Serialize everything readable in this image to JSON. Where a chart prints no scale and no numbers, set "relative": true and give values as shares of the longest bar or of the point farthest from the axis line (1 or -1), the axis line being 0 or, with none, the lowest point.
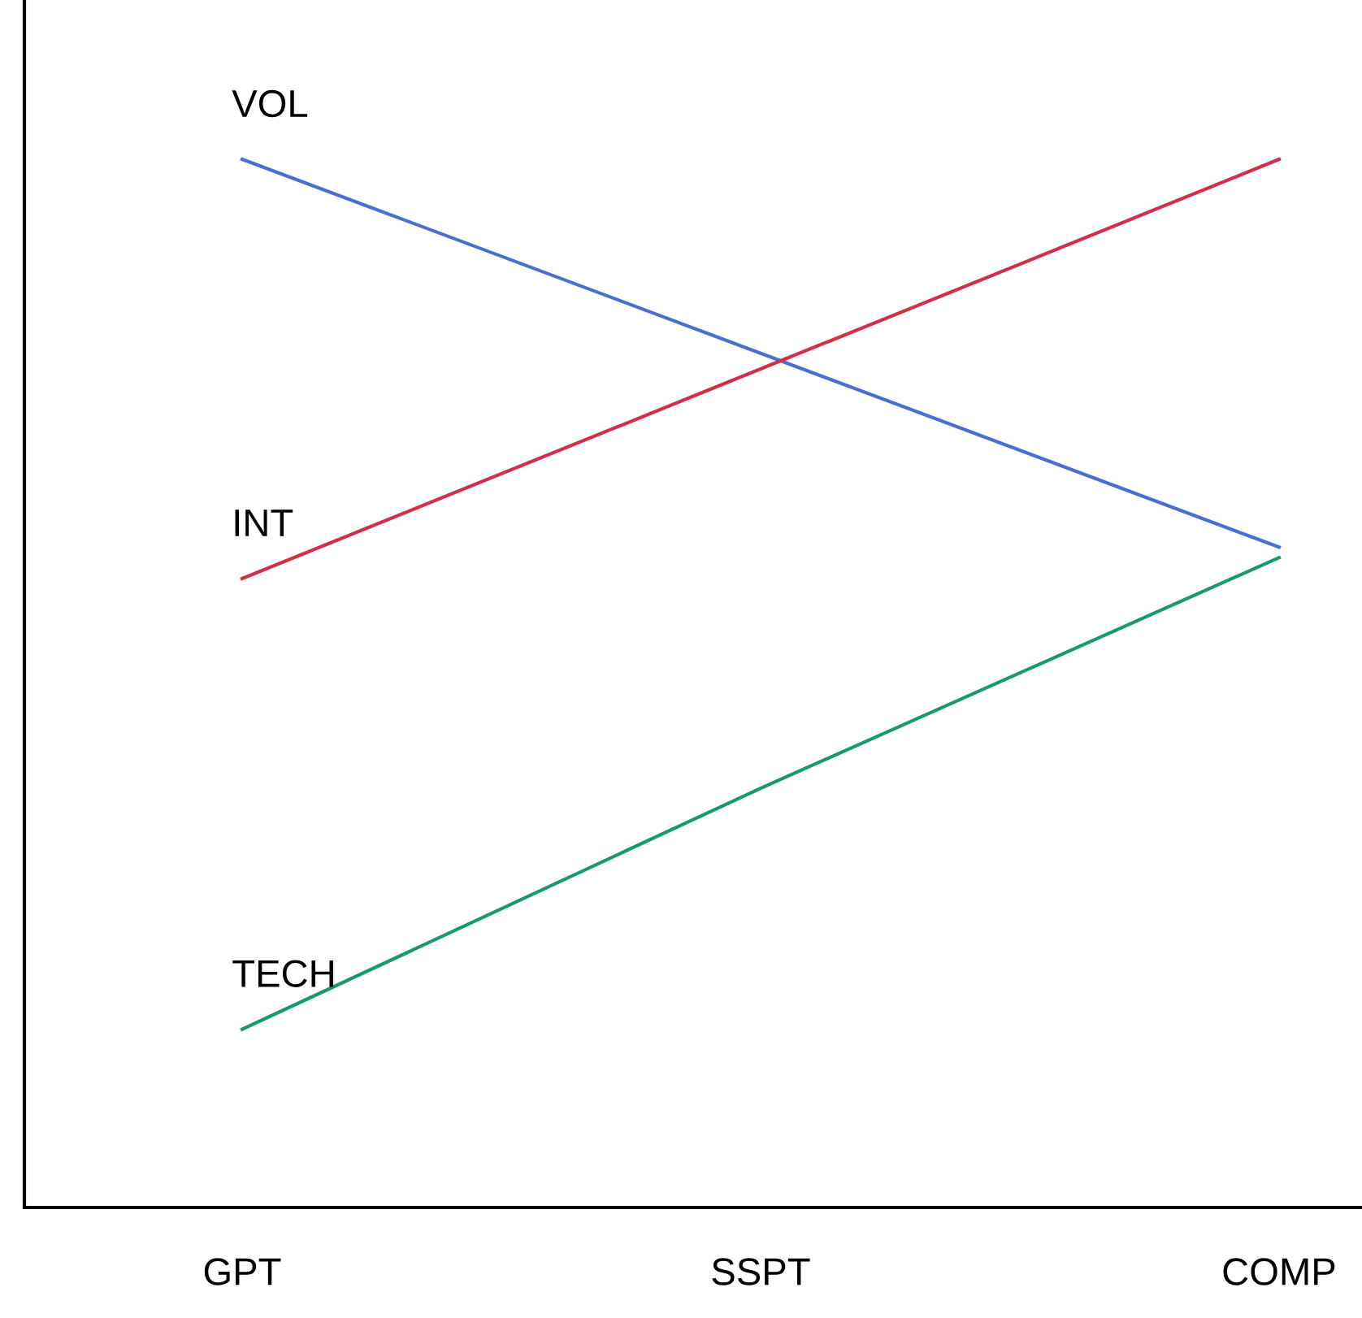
{
  "chart_data": {
    "type": "line",
    "relative": true,
    "categories": [
      "GPT",
      "SSPT",
      "COMP"
    ],
    "series": [
      {
        "name": "VOL",
        "color": "#4a6fd0",
        "values": [
          1.0,
          0.815,
          0.63
        ]
      },
      {
        "name": "INT",
        "color": "#d0304a",
        "values": [
          0.6,
          0.8,
          1.0
        ]
      },
      {
        "name": "TECH",
        "color": "#1a9a6a",
        "values": [
          0.17,
          0.4,
          0.62
        ]
      }
    ],
    "grid": false,
    "legend": false,
    "marker": "none",
    "line_style": "solid"
  }
}
